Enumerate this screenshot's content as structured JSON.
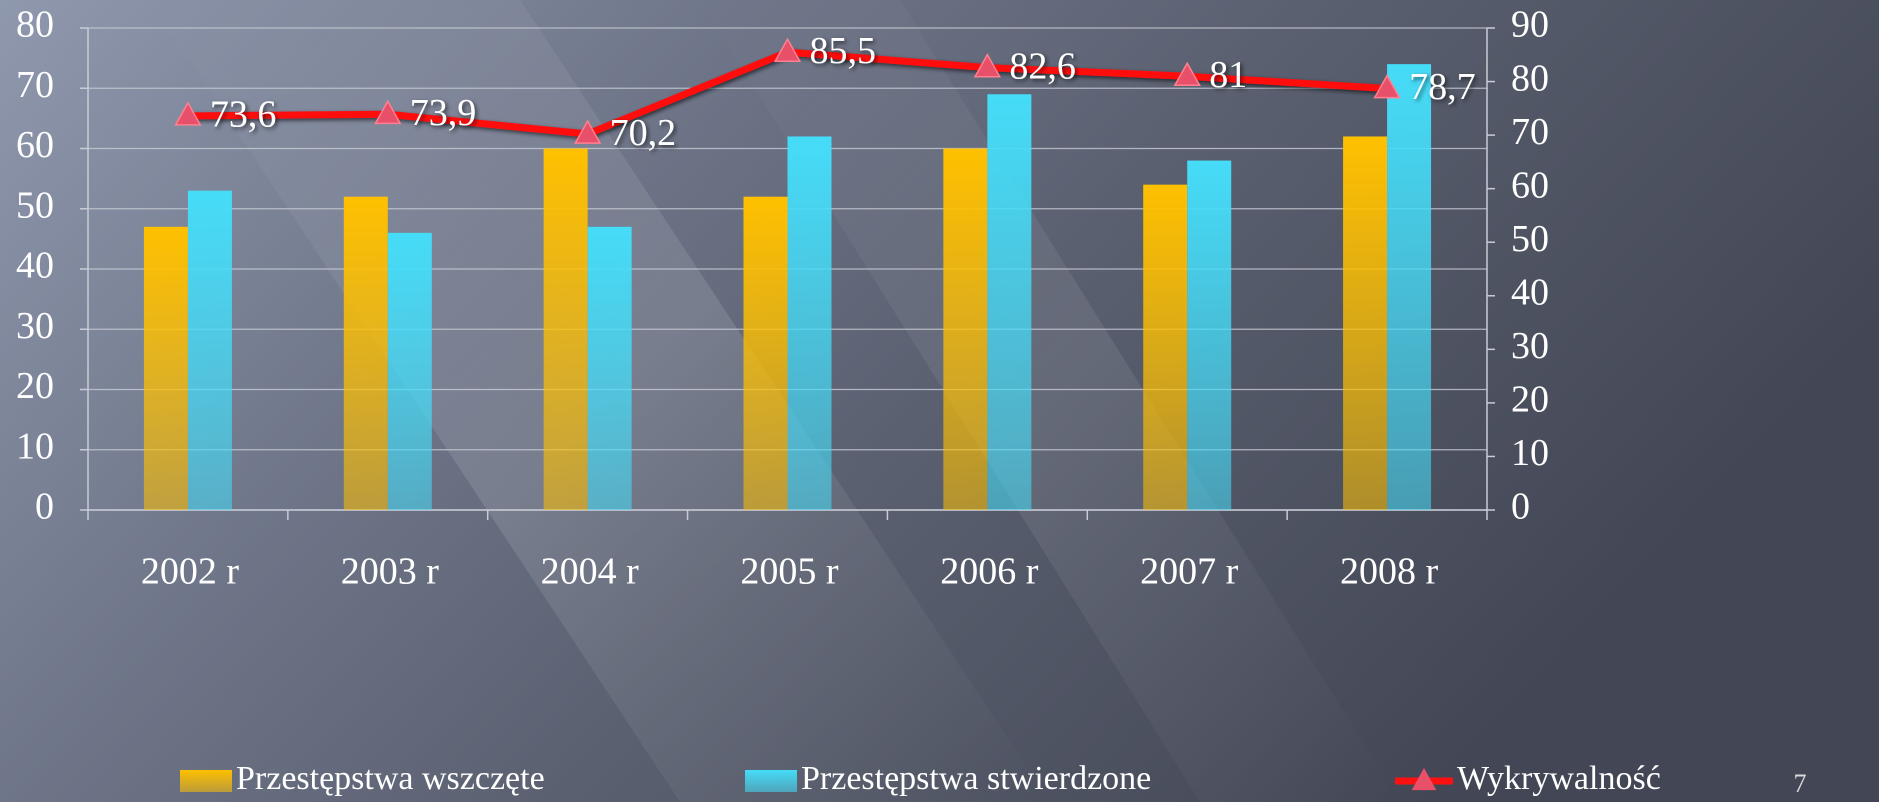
{
  "chart_data": {
    "type": "bar",
    "categories": [
      "2002 r",
      "2003 r",
      "2004 r",
      "2005 r",
      "2006 r",
      "2007 r",
      "2008 r"
    ],
    "series": [
      {
        "name": "Przestępstwa wszczęte",
        "color": "#ffc000",
        "values": [
          47,
          52,
          60,
          52,
          60,
          54,
          62
        ]
      },
      {
        "name": "Przestępstwa stwierdzone",
        "color": "#45dcf8",
        "values": [
          53,
          46,
          47,
          62,
          69,
          58,
          74
        ]
      },
      {
        "name": "Wykrywalność",
        "type": "line",
        "axis": "y2",
        "color": "#ff1010",
        "marker_color": "#e8506a",
        "values": [
          73.6,
          73.9,
          70.2,
          85.5,
          82.6,
          81,
          78.7
        ],
        "value_labels": [
          "73,6",
          "73,9",
          "70,2",
          "85,5",
          "82,6",
          "81",
          "78,7"
        ]
      }
    ],
    "ylim": [
      0,
      80
    ],
    "yticks": [
      0,
      10,
      20,
      30,
      40,
      50,
      60,
      70,
      80
    ],
    "y2lim": [
      0,
      90
    ],
    "y2ticks": [
      0,
      10,
      20,
      30,
      40,
      50,
      60,
      70,
      80,
      90
    ],
    "grid": true,
    "legend": "bottom"
  },
  "slide_number": "7"
}
